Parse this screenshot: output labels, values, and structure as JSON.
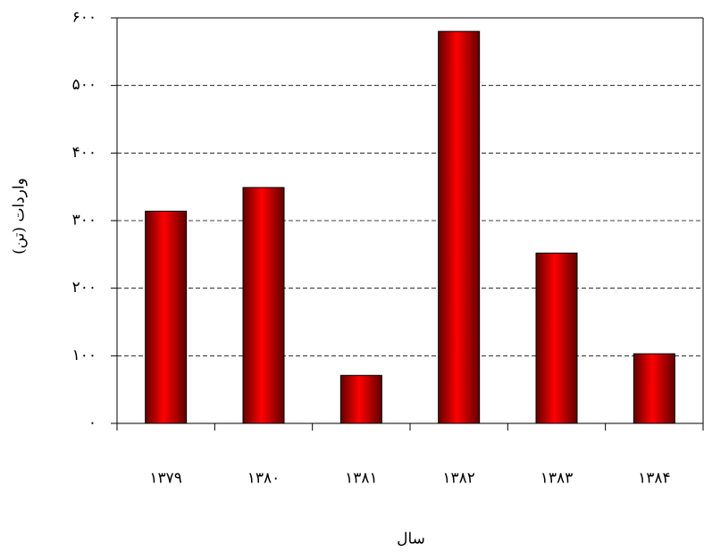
{
  "chart_data": {
    "type": "bar",
    "xlabel": "سال",
    "ylabel": "واردات (تن)",
    "categories": [
      "۱۳۷۹",
      "۱۳۸۰",
      "۱۳۸۱",
      "۱۳۸۲",
      "۱۳۸۳",
      "۱۳۸۴"
    ],
    "values": [
      314,
      349,
      71,
      580,
      252,
      103
    ],
    "color": "#ff0000",
    "ylim": [
      0,
      600
    ],
    "yticks": [
      {
        "value": 0,
        "label": "۰"
      },
      {
        "value": 100,
        "label": "۱۰۰"
      },
      {
        "value": 200,
        "label": "۲۰۰"
      },
      {
        "value": 300,
        "label": "۳۰۰"
      },
      {
        "value": 400,
        "label": "۴۰۰"
      },
      {
        "value": 500,
        "label": "۵۰۰"
      },
      {
        "value": 600,
        "label": "۶۰۰"
      }
    ],
    "grid": true
  }
}
